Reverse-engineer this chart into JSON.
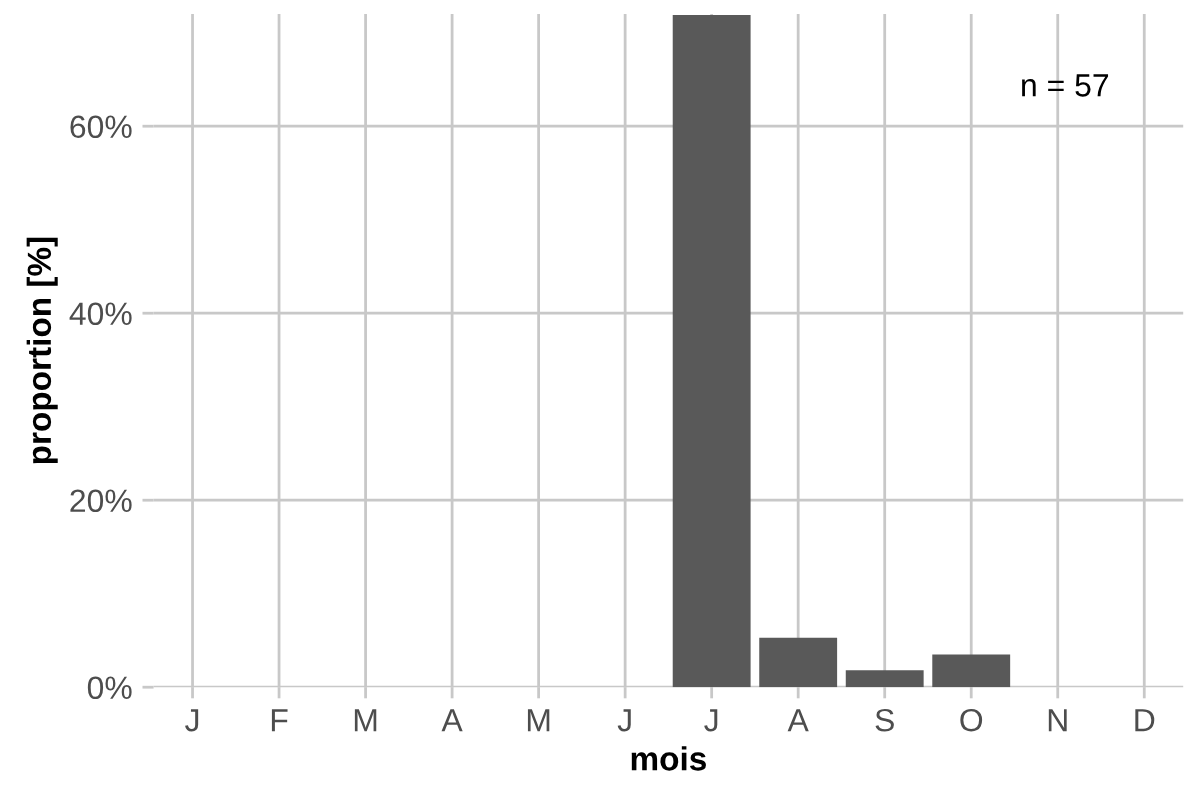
{
  "chart_data": {
    "type": "bar",
    "categories": [
      "J",
      "F",
      "M",
      "A",
      "M",
      "J",
      "J",
      "A",
      "S",
      "O",
      "N",
      "D"
    ],
    "values": [
      0,
      0,
      0,
      0,
      0,
      0,
      71.9,
      5.3,
      1.8,
      3.5,
      0,
      0
    ],
    "color": "#595959",
    "xlabel": "mois",
    "ylabel": "proportion [%]",
    "ylim": [
      0,
      72
    ],
    "yticks": [
      {
        "value": 0,
        "label": "0%"
      },
      {
        "value": 20,
        "label": "20%"
      },
      {
        "value": 40,
        "label": "40%"
      },
      {
        "value": 60,
        "label": "60%"
      }
    ],
    "annotations": [
      "n = 57"
    ],
    "grid": true
  }
}
